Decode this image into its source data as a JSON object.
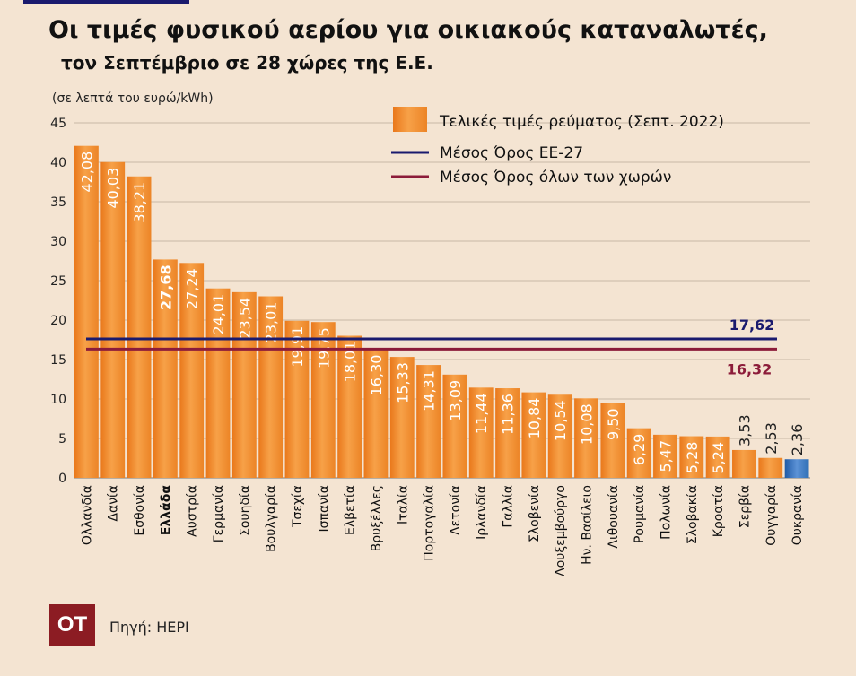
{
  "title": "Οι τιμές φυσικού αερίου για οικιακούς καταναλωτές,",
  "subtitle": "τον Σεπτέμβριο σε 28 χώρες της Ε.Ε.",
  "source": "Πηγή: HEPI",
  "logo_text": "OT",
  "colors": {
    "bar": "#f28c28",
    "bar_highlight": "#2f6fb5",
    "eu_avg": "#1a1a6e",
    "all_avg": "#8c1c3a",
    "background": "#f4e4d2"
  },
  "chart_data": {
    "type": "bar",
    "ylabel": "(σε λεπτά του ευρώ/kWh)",
    "ylim": [
      0,
      45
    ],
    "yticks": [
      0,
      5,
      10,
      15,
      20,
      25,
      30,
      35,
      40,
      45
    ],
    "grid": true,
    "legend": {
      "placement": "top-right",
      "bar_label": "Τελικές τιμές ρεύματος (Σεπτ. 2022)",
      "eu_avg_label": "Μέσος Όρος ΕΕ-27",
      "all_avg_label": "Μέσος Όρος όλων των χωρών"
    },
    "categories": [
      "Ολλανδία",
      "Δανία",
      "Εσθονία",
      "Ελλάδα",
      "Αυστρία",
      "Γερμανία",
      "Σουηδία",
      "Βουλγαρία",
      "Τσεχία",
      "Ισπανία",
      "Ελβετία",
      "Βρυξέλλες",
      "Ιταλία",
      "Πορτογαλία",
      "Λετονία",
      "Ιρλανδία",
      "Γαλλία",
      "Σλοβενία",
      "Λουξεμβούργο",
      "Ην. Βασίλειο",
      "Λιθουανία",
      "Ρουμανία",
      "Πολωνία",
      "Σλοβακία",
      "Κροατία",
      "Σερβία",
      "Ουγγαρία",
      "Ουκρανία"
    ],
    "values": [
      42.08,
      40.03,
      38.21,
      27.68,
      27.24,
      24.01,
      23.54,
      23.01,
      19.91,
      19.75,
      18.01,
      16.3,
      15.33,
      14.31,
      13.09,
      11.44,
      11.36,
      10.84,
      10.54,
      10.08,
      9.5,
      6.29,
      5.47,
      5.28,
      5.24,
      3.53,
      2.53,
      2.36
    ],
    "value_labels": [
      "42,08",
      "40,03",
      "38,21",
      "27,68",
      "27,24",
      "24,01",
      "23,54",
      "23,01",
      "19,91",
      "19,75",
      "18,01",
      "16,30",
      "15,33",
      "14,31",
      "13,09",
      "11,44",
      "11,36",
      "10,84",
      "10,54",
      "10,08",
      "9,50",
      "6,29",
      "5,47",
      "5,28",
      "5,24",
      "3,53",
      "2,53",
      "2,36"
    ],
    "highlight_category": "Ελλάδα",
    "other_color_category": "Ουκρανία",
    "eu_avg": 17.62,
    "eu_avg_label": "17,62",
    "all_avg": 16.32,
    "all_avg_label": "16,32"
  }
}
